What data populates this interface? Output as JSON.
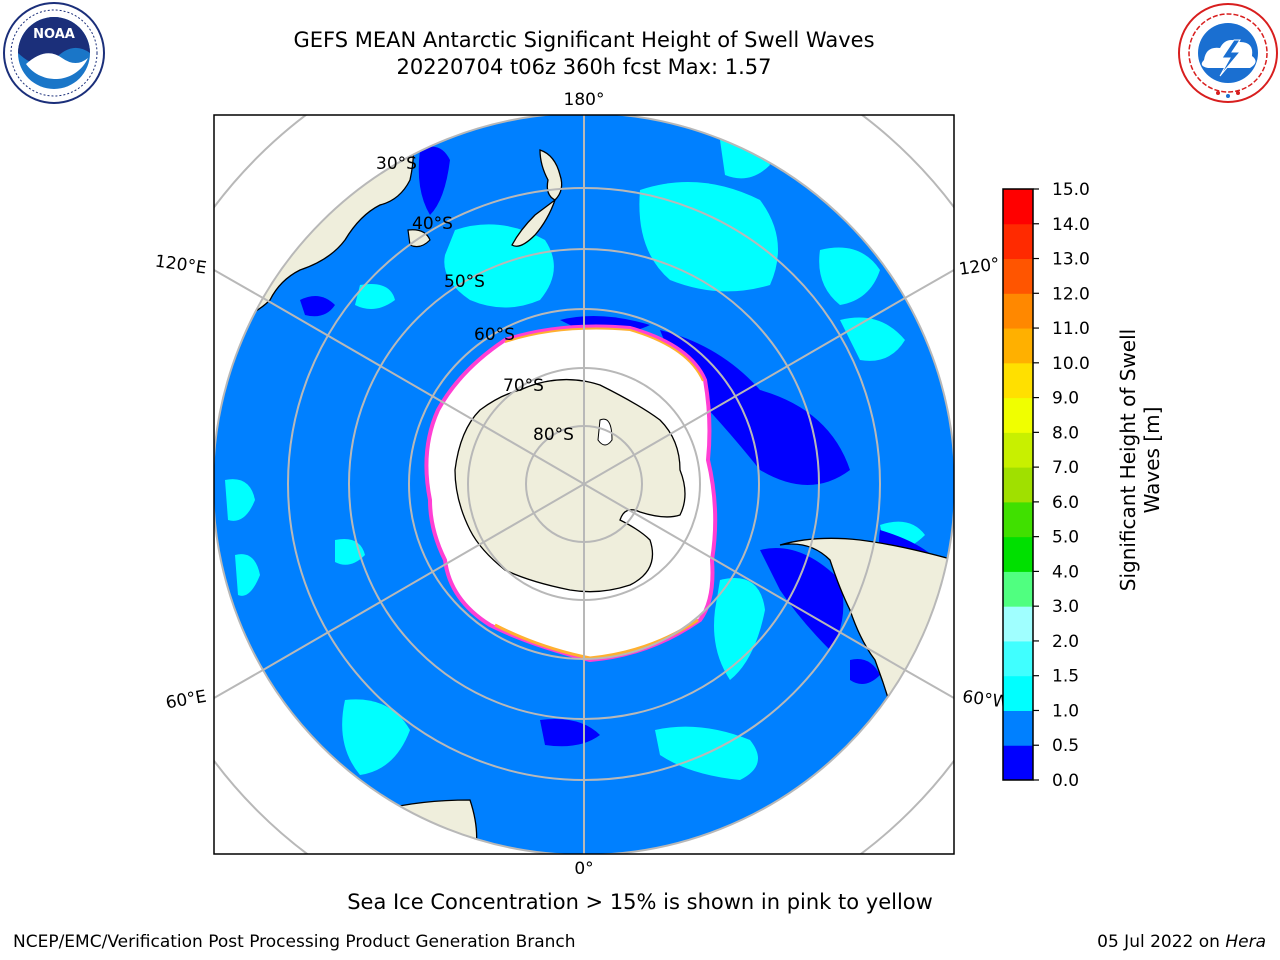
{
  "title": {
    "line1": "GEFS MEAN Antarctic Significant Height of Swell Waves",
    "line2": "20220704 t06z 360h fcst   Max: 1.57"
  },
  "logos": {
    "noaa": {
      "text": "NOAA",
      "icon": "noaa-logo-icon",
      "colors": {
        "navy": "#1b2f7a",
        "blue": "#1a76c8"
      }
    },
    "nws": {
      "icon": "nws-logo-icon",
      "colors": {
        "red": "#d81e1e",
        "blue": "#1a6fd1"
      }
    }
  },
  "map": {
    "projection": "south-polar-stereographic",
    "colors": {
      "ocean": "#0080ff",
      "ice": "#ffffff",
      "land": "#efeedc",
      "grid": "#b8b8b8",
      "ice_edge": "#ff3fd4"
    },
    "longitude_labels": [
      "180°",
      "120°E",
      "120°",
      "60°E",
      "60°W",
      "0°"
    ],
    "latitude_labels": [
      "30°S",
      "40°S",
      "50°S",
      "60°S",
      "70°S",
      "80°S"
    ]
  },
  "colorbar": {
    "title_line1": "Significant Height of Swell",
    "title_line2": "Waves [m]",
    "ticks": [
      "0.0",
      "0.5",
      "1.0",
      "1.5",
      "2.0",
      "3.0",
      "4.0",
      "5.0",
      "6.0",
      "7.0",
      "8.0",
      "9.0",
      "10.0",
      "11.0",
      "12.0",
      "13.0",
      "14.0",
      "15.0"
    ],
    "colors": [
      "#0000ff",
      "#0080ff",
      "#00ffff",
      "#40ffff",
      "#a0ffff",
      "#50ff80",
      "#00e000",
      "#40e000",
      "#a0e000",
      "#c8f000",
      "#f0ff00",
      "#ffe000",
      "#ffb000",
      "#ff8800",
      "#ff5500",
      "#ff2a00",
      "#ff0000"
    ]
  },
  "caption": "Sea Ice Concentration > 15% is shown in pink to yellow",
  "footer": {
    "left": "NCEP/EMC/Verification Post Processing Product Generation Branch",
    "date": "05 Jul 2022 on ",
    "host": "Hera"
  }
}
